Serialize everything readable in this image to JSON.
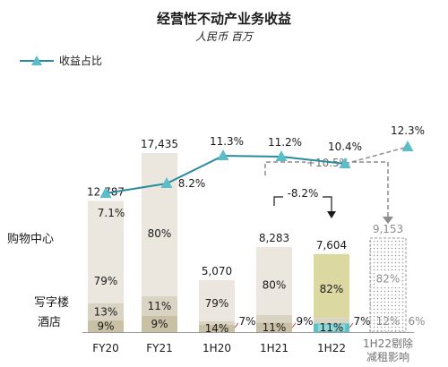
{
  "chart_data": {
    "type": "bar",
    "title": "经营性不动产业务收益",
    "subtitle": "人民币 百万",
    "categories": [
      "FY20",
      "FY21",
      "1H20",
      "1H21",
      "1H22",
      "1H22剔除\n减租影响"
    ],
    "totals": [
      "12,787",
      "17,435",
      "5,070",
      "8,283",
      "7,604",
      "9,153"
    ],
    "total_values": [
      12787,
      17435,
      5070,
      8283,
      7604,
      9153
    ],
    "series": [
      {
        "name": "购物中心",
        "values": [
          79,
          80,
          79,
          80,
          82,
          82
        ],
        "labels": [
          "79%",
          "80%",
          "79%",
          "80%",
          "82%",
          "82%"
        ],
        "color": "#ebe7df"
      },
      {
        "name": "写字楼",
        "values": [
          13,
          11,
          7,
          9,
          7,
          6
        ],
        "labels": [
          "13%",
          "11%",
          "7%",
          "9%",
          "7%",
          "6%"
        ],
        "color": "#d9d3c3"
      },
      {
        "name": "酒店",
        "values": [
          9,
          9,
          14,
          11,
          11,
          12
        ],
        "labels": [
          "9%",
          "9%",
          "14%",
          "11%",
          "11%",
          "12%"
        ],
        "color": "#c9c0a6"
      }
    ],
    "line": {
      "name": "收益占比",
      "values": [
        7.1,
        8.2,
        11.3,
        11.2,
        10.4,
        12.3
      ],
      "labels": [
        "7.1%",
        "8.2%",
        "11.3%",
        "11.2%",
        "10.4%",
        "12.3%"
      ],
      "color": "#2a8a9e"
    },
    "annotations": {
      "growth_label": "+10.5%",
      "decline_label": "-8.2%"
    },
    "highlight_colors": {
      "mall_1H22": "#dcd8a2",
      "hotel_1H22": "#5cc2c6"
    }
  }
}
